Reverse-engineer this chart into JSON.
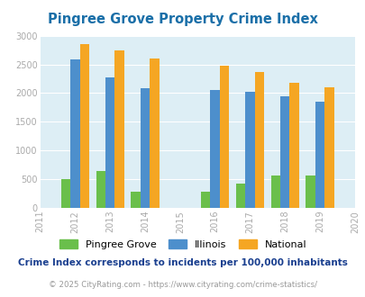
{
  "title": "Pingree Grove Property Crime Index",
  "all_years": [
    2011,
    2012,
    2013,
    2014,
    2015,
    2016,
    2017,
    2018,
    2019,
    2020
  ],
  "bar_years": [
    2012,
    2013,
    2014,
    2016,
    2017,
    2018,
    2019
  ],
  "pingree_grove": [
    500,
    650,
    280,
    280,
    420,
    560,
    560
  ],
  "illinois": [
    2580,
    2270,
    2080,
    2050,
    2020,
    1940,
    1850
  ],
  "national": [
    2860,
    2740,
    2600,
    2470,
    2360,
    2180,
    2100
  ],
  "color_pingree": "#6abf4b",
  "color_illinois": "#4d8fcc",
  "color_national": "#f5a623",
  "ylim": [
    0,
    3000
  ],
  "yticks": [
    0,
    500,
    1000,
    1500,
    2000,
    2500,
    3000
  ],
  "bg_color": "#ddeef5",
  "fig_bg": "#ffffff",
  "bar_width": 0.27,
  "legend_labels": [
    "Pingree Grove",
    "Illinois",
    "National"
  ],
  "footnote1": "Crime Index corresponds to incidents per 100,000 inhabitants",
  "footnote2": "© 2025 CityRating.com - https://www.cityrating.com/crime-statistics/",
  "title_color": "#1a6fa8",
  "footnote1_color": "#1a3f8f",
  "footnote2_color": "#999999",
  "tick_color": "#aaaaaa",
  "grid_color": "#ffffff"
}
